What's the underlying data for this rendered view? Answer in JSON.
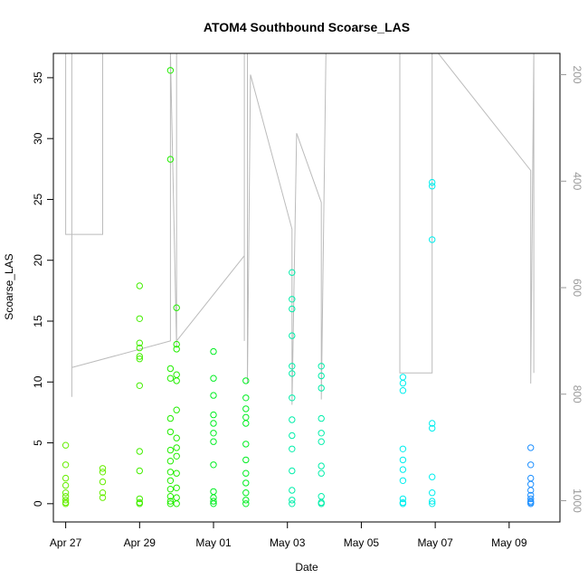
{
  "chart_data": {
    "type": "scatter",
    "title": "ATOM4 Southbound Scoarse_LAS",
    "xlabel": "Date",
    "ylabel": "Scoarse_LAS",
    "xlim": [
      "2016-04-26T16:00",
      "2016-05-10T09:00"
    ],
    "ylim": [
      -1.5,
      37
    ],
    "x_ticks": [
      {
        "label": "Apr 27",
        "date": "2016-04-27"
      },
      {
        "label": "Apr 29",
        "date": "2016-04-29"
      },
      {
        "label": "May 01",
        "date": "2016-05-01"
      },
      {
        "label": "May 03",
        "date": "2016-05-03"
      },
      {
        "label": "May 05",
        "date": "2016-05-05"
      },
      {
        "label": "May 07",
        "date": "2016-05-07"
      },
      {
        "label": "May 09",
        "date": "2016-05-09"
      }
    ],
    "y_ticks": [
      0,
      5,
      10,
      15,
      20,
      25,
      30,
      35
    ],
    "right_axis": {
      "label": "",
      "ticks": [
        200,
        400,
        600,
        800,
        1000
      ],
      "range": [
        1040,
        160
      ],
      "color": "#999999"
    },
    "series": [
      {
        "color": "#66ee00",
        "points": [
          {
            "x": "2016-04-27T00:00",
            "y": 4.8
          },
          {
            "x": "2016-04-27T00:00",
            "y": 3.2
          },
          {
            "x": "2016-04-27T00:00",
            "y": 2.1
          },
          {
            "x": "2016-04-27T00:00",
            "y": 1.5
          },
          {
            "x": "2016-04-27T00:00",
            "y": 0.9
          },
          {
            "x": "2016-04-27T00:00",
            "y": 0.6
          },
          {
            "x": "2016-04-27T00:00",
            "y": 0.3
          },
          {
            "x": "2016-04-27T00:00",
            "y": 0.1
          },
          {
            "x": "2016-04-27T00:00",
            "y": 0.0
          },
          {
            "x": "2016-04-28T00:00",
            "y": 2.9
          },
          {
            "x": "2016-04-28T00:00",
            "y": 2.6
          },
          {
            "x": "2016-04-28T00:00",
            "y": 1.8
          },
          {
            "x": "2016-04-28T00:00",
            "y": 0.9
          },
          {
            "x": "2016-04-28T00:00",
            "y": 0.5
          }
        ]
      },
      {
        "color": "#44ee00",
        "points": [
          {
            "x": "2016-04-29T00:00",
            "y": 17.9
          },
          {
            "x": "2016-04-29T00:00",
            "y": 15.2
          },
          {
            "x": "2016-04-29T00:00",
            "y": 13.2
          },
          {
            "x": "2016-04-29T00:00",
            "y": 12.8
          },
          {
            "x": "2016-04-29T00:00",
            "y": 12.1
          },
          {
            "x": "2016-04-29T00:00",
            "y": 11.9
          },
          {
            "x": "2016-04-29T00:00",
            "y": 9.7
          },
          {
            "x": "2016-04-29T00:00",
            "y": 4.3
          },
          {
            "x": "2016-04-29T00:00",
            "y": 2.7
          },
          {
            "x": "2016-04-29T00:00",
            "y": 0.4
          },
          {
            "x": "2016-04-29T00:00",
            "y": 0.1
          },
          {
            "x": "2016-04-29T00:00",
            "y": 0.0
          }
        ]
      },
      {
        "color": "#22ee00",
        "points": [
          {
            "x": "2016-04-29T20:00",
            "y": 35.6
          },
          {
            "x": "2016-04-29T20:00",
            "y": 28.3
          },
          {
            "x": "2016-04-29T20:00",
            "y": 11.1
          },
          {
            "x": "2016-04-29T20:00",
            "y": 10.3
          },
          {
            "x": "2016-04-29T20:00",
            "y": 7.0
          },
          {
            "x": "2016-04-29T20:00",
            "y": 5.9
          },
          {
            "x": "2016-04-29T20:00",
            "y": 4.4
          },
          {
            "x": "2016-04-29T20:00",
            "y": 3.5
          },
          {
            "x": "2016-04-29T20:00",
            "y": 2.6
          },
          {
            "x": "2016-04-29T20:00",
            "y": 1.9
          },
          {
            "x": "2016-04-29T20:00",
            "y": 1.2
          },
          {
            "x": "2016-04-29T20:00",
            "y": 0.6
          },
          {
            "x": "2016-04-29T20:00",
            "y": 0.2
          },
          {
            "x": "2016-04-29T20:00",
            "y": 0.0
          },
          {
            "x": "2016-04-30T00:00",
            "y": 16.1
          },
          {
            "x": "2016-04-30T00:00",
            "y": 13.1
          },
          {
            "x": "2016-04-30T00:00",
            "y": 12.7
          },
          {
            "x": "2016-04-30T00:00",
            "y": 10.6
          },
          {
            "x": "2016-04-30T00:00",
            "y": 10.1
          },
          {
            "x": "2016-04-30T00:00",
            "y": 7.7
          },
          {
            "x": "2016-04-30T00:00",
            "y": 5.4
          },
          {
            "x": "2016-04-30T00:00",
            "y": 4.6
          },
          {
            "x": "2016-04-30T00:00",
            "y": 3.9
          },
          {
            "x": "2016-04-30T00:00",
            "y": 2.5
          },
          {
            "x": "2016-04-30T00:00",
            "y": 1.3
          },
          {
            "x": "2016-04-30T00:00",
            "y": 0.5
          },
          {
            "x": "2016-04-30T00:00",
            "y": 0.0
          }
        ]
      },
      {
        "color": "#00ee22",
        "points": [
          {
            "x": "2016-05-01T00:00",
            "y": 12.5
          },
          {
            "x": "2016-05-01T00:00",
            "y": 10.3
          },
          {
            "x": "2016-05-01T00:00",
            "y": 8.9
          },
          {
            "x": "2016-05-01T00:00",
            "y": 7.3
          },
          {
            "x": "2016-05-01T00:00",
            "y": 6.6
          },
          {
            "x": "2016-05-01T00:00",
            "y": 5.8
          },
          {
            "x": "2016-05-01T00:00",
            "y": 5.1
          },
          {
            "x": "2016-05-01T00:00",
            "y": 3.2
          },
          {
            "x": "2016-05-01T00:00",
            "y": 1.0
          },
          {
            "x": "2016-05-01T00:00",
            "y": 0.5
          },
          {
            "x": "2016-05-01T00:00",
            "y": 0.2
          },
          {
            "x": "2016-05-01T00:00",
            "y": 0.0
          },
          {
            "x": "2016-05-01T21:00",
            "y": 10.1
          },
          {
            "x": "2016-05-01T21:00",
            "y": 8.7
          },
          {
            "x": "2016-05-01T21:00",
            "y": 7.8
          },
          {
            "x": "2016-05-01T21:00",
            "y": 7.1
          },
          {
            "x": "2016-05-01T21:00",
            "y": 6.6
          },
          {
            "x": "2016-05-01T21:00",
            "y": 4.9
          },
          {
            "x": "2016-05-01T21:00",
            "y": 3.6
          },
          {
            "x": "2016-05-01T21:00",
            "y": 2.5
          },
          {
            "x": "2016-05-01T21:00",
            "y": 1.7
          },
          {
            "x": "2016-05-01T21:00",
            "y": 0.9
          },
          {
            "x": "2016-05-01T21:00",
            "y": 0.3
          },
          {
            "x": "2016-05-01T21:00",
            "y": 0.0
          }
        ]
      },
      {
        "color": "#00eeaa",
        "points": [
          {
            "x": "2016-05-03T03:00",
            "y": 19.0
          },
          {
            "x": "2016-05-03T03:00",
            "y": 16.8
          },
          {
            "x": "2016-05-03T03:00",
            "y": 16.0
          },
          {
            "x": "2016-05-03T03:00",
            "y": 13.8
          },
          {
            "x": "2016-05-03T03:00",
            "y": 11.3
          },
          {
            "x": "2016-05-03T03:00",
            "y": 10.7
          },
          {
            "x": "2016-05-03T03:00",
            "y": 8.7
          },
          {
            "x": "2016-05-03T03:00",
            "y": 6.9
          },
          {
            "x": "2016-05-03T03:00",
            "y": 5.6
          },
          {
            "x": "2016-05-03T03:00",
            "y": 4.5
          },
          {
            "x": "2016-05-03T03:00",
            "y": 2.7
          },
          {
            "x": "2016-05-03T03:00",
            "y": 1.1
          },
          {
            "x": "2016-05-03T03:00",
            "y": 0.3
          },
          {
            "x": "2016-05-03T03:00",
            "y": 0.0
          },
          {
            "x": "2016-05-03T22:00",
            "y": 11.3
          },
          {
            "x": "2016-05-03T22:00",
            "y": 10.5
          },
          {
            "x": "2016-05-03T22:00",
            "y": 9.5
          },
          {
            "x": "2016-05-03T22:00",
            "y": 7.0
          },
          {
            "x": "2016-05-03T22:00",
            "y": 5.8
          },
          {
            "x": "2016-05-03T22:00",
            "y": 5.1
          },
          {
            "x": "2016-05-03T22:00",
            "y": 3.1
          },
          {
            "x": "2016-05-03T22:00",
            "y": 2.5
          },
          {
            "x": "2016-05-03T22:00",
            "y": 0.6
          },
          {
            "x": "2016-05-03T22:00",
            "y": 0.1
          },
          {
            "x": "2016-05-03T22:00",
            "y": 0.0
          }
        ]
      },
      {
        "color": "#00eeee",
        "points": [
          {
            "x": "2016-05-06T03:00",
            "y": 10.4
          },
          {
            "x": "2016-05-06T03:00",
            "y": 9.9
          },
          {
            "x": "2016-05-06T03:00",
            "y": 9.3
          },
          {
            "x": "2016-05-06T03:00",
            "y": 4.5
          },
          {
            "x": "2016-05-06T03:00",
            "y": 3.6
          },
          {
            "x": "2016-05-06T03:00",
            "y": 2.8
          },
          {
            "x": "2016-05-06T03:00",
            "y": 1.9
          },
          {
            "x": "2016-05-06T03:00",
            "y": 0.4
          },
          {
            "x": "2016-05-06T03:00",
            "y": 0.1
          },
          {
            "x": "2016-05-06T03:00",
            "y": 0.0
          },
          {
            "x": "2016-05-06T22:00",
            "y": 26.4
          },
          {
            "x": "2016-05-06T22:00",
            "y": 26.1
          },
          {
            "x": "2016-05-06T22:00",
            "y": 21.7
          },
          {
            "x": "2016-05-06T22:00",
            "y": 6.6
          },
          {
            "x": "2016-05-06T22:00",
            "y": 6.2
          },
          {
            "x": "2016-05-06T22:00",
            "y": 2.2
          },
          {
            "x": "2016-05-06T22:00",
            "y": 0.9
          },
          {
            "x": "2016-05-06T22:00",
            "y": 0.2
          },
          {
            "x": "2016-05-06T22:00",
            "y": 0.0
          }
        ]
      },
      {
        "color": "#1e90ff",
        "points": [
          {
            "x": "2016-05-09T14:00",
            "y": 4.6
          },
          {
            "x": "2016-05-09T14:00",
            "y": 3.2
          },
          {
            "x": "2016-05-09T14:00",
            "y": 2.1
          },
          {
            "x": "2016-05-09T14:00",
            "y": 1.6
          },
          {
            "x": "2016-05-09T14:00",
            "y": 1.1
          },
          {
            "x": "2016-05-09T14:00",
            "y": 0.7
          },
          {
            "x": "2016-05-09T14:00",
            "y": 0.4
          },
          {
            "x": "2016-05-09T14:00",
            "y": 0.2
          },
          {
            "x": "2016-05-09T14:00",
            "y": 0.1
          },
          {
            "x": "2016-05-09T14:00",
            "y": 0.0
          }
        ]
      }
    ],
    "secondary_line": {
      "color": "#bbbbbb",
      "axis": "right",
      "points": [
        {
          "x": "2016-04-27T00:00",
          "y": 160
        },
        {
          "x": "2016-04-27T00:00",
          "y": 500
        },
        {
          "x": "2016-04-28T00:00",
          "y": 500
        },
        {
          "x": "2016-04-28T00:00",
          "y": 160
        },
        {
          "x": "2016-04-27T04:00",
          "y": 160
        },
        {
          "x": "2016-04-27T04:00",
          "y": 805
        },
        {
          "x": "2016-04-27T04:00",
          "y": 750
        },
        {
          "x": "2016-04-29T20:00",
          "y": 700
        },
        {
          "x": "2016-04-29T20:00",
          "y": 160
        },
        {
          "x": "2016-04-30T00:00",
          "y": 710
        },
        {
          "x": "2016-04-30T00:00",
          "y": 160
        },
        {
          "x": "2016-04-30T00:00",
          "y": 700
        },
        {
          "x": "2016-05-01T20:00",
          "y": 540
        },
        {
          "x": "2016-05-01T20:00",
          "y": 700
        },
        {
          "x": "2016-05-01T20:00",
          "y": 160
        },
        {
          "x": "2016-05-01T22:00",
          "y": 160
        },
        {
          "x": "2016-05-01T22:00",
          "y": 780
        },
        {
          "x": "2016-05-02T00:00",
          "y": 200
        },
        {
          "x": "2016-05-03T03:00",
          "y": 490
        },
        {
          "x": "2016-05-03T03:00",
          "y": 820
        },
        {
          "x": "2016-05-03T06:00",
          "y": 310
        },
        {
          "x": "2016-05-03T22:00",
          "y": 440
        },
        {
          "x": "2016-05-03T22:00",
          "y": 810
        },
        {
          "x": "2016-05-04T01:00",
          "y": 160
        },
        {
          "x": "2016-05-06T01:00",
          "y": 160
        },
        {
          "x": "2016-05-06T01:00",
          "y": 760
        },
        {
          "x": "2016-05-06T22:00",
          "y": 760
        },
        {
          "x": "2016-05-06T22:00",
          "y": 160
        },
        {
          "x": "2016-05-07T02:00",
          "y": 160
        },
        {
          "x": "2016-05-09T14:00",
          "y": 380
        },
        {
          "x": "2016-05-09T14:00",
          "y": 780
        },
        {
          "x": "2016-05-09T16:00",
          "y": 160
        },
        {
          "x": "2016-05-09T16:00",
          "y": 760
        }
      ]
    }
  }
}
